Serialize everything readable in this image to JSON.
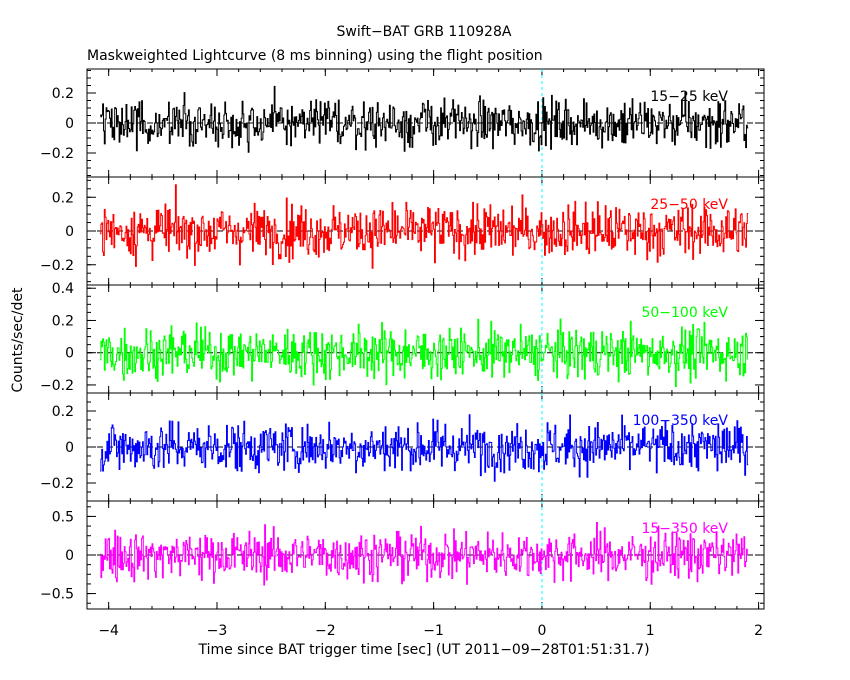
{
  "chart_data": {
    "type": "line",
    "title": "Swift−BAT GRB 110928A",
    "subtitle": "Maskweighted Lightcurve (8 ms binning) using the flight position",
    "xlabel": "Time since BAT trigger time [sec] (UT 2011−09−28T01:51:31.7)",
    "ylabel": "Counts/sec/det",
    "xlim": [
      -4.2,
      2.05
    ],
    "x_ticks": [
      -4,
      -3,
      -2,
      -1,
      0,
      1,
      2
    ],
    "x_tick_labels": [
      "−4",
      "−3",
      "−2",
      "−1",
      "0",
      "1",
      "2"
    ],
    "x_range": [
      -4.08,
      1.9
    ],
    "bin_width_sec": 0.008,
    "trigger_marker": {
      "x": 0
    },
    "panels": [
      {
        "name": "15−25 keV",
        "color": "#000000",
        "ylim": [
          -0.36,
          0.36
        ],
        "yticks": [
          0.2,
          0,
          -0.2
        ],
        "ytick_labels": [
          "0.2",
          "0",
          "−0.2"
        ],
        "approx_amplitude": 0.2
      },
      {
        "name": "25−50 keV",
        "color": "#ff0000",
        "ylim": [
          -0.32,
          0.32
        ],
        "yticks": [
          0.2,
          0,
          -0.2
        ],
        "ytick_labels": [
          "0.2",
          "0",
          "−0.2"
        ],
        "approx_amplitude": 0.2
      },
      {
        "name": "50−100 keV",
        "color": "#00ff00",
        "ylim": [
          -0.25,
          0.42
        ],
        "yticks": [
          0.4,
          0.2,
          0,
          -0.2
        ],
        "ytick_labels": [
          "0.4",
          "0.2",
          "0",
          "−0.2"
        ],
        "approx_amplitude": 0.2
      },
      {
        "name": "100−350 keV",
        "color": "#0000ff",
        "ylim": [
          -0.3,
          0.3
        ],
        "yticks": [
          0.2,
          0,
          -0.2
        ],
        "ytick_labels": [
          "0.2",
          "0",
          "−0.2"
        ],
        "approx_amplitude": 0.18
      },
      {
        "name": "15−350 keV",
        "color": "#ff00ff",
        "ylim": [
          -0.7,
          0.7
        ],
        "yticks": [
          0.5,
          0,
          -0.5
        ],
        "ytick_labels": [
          "0.5",
          "0",
          "−0.5"
        ],
        "approx_amplitude": 0.4
      }
    ]
  }
}
